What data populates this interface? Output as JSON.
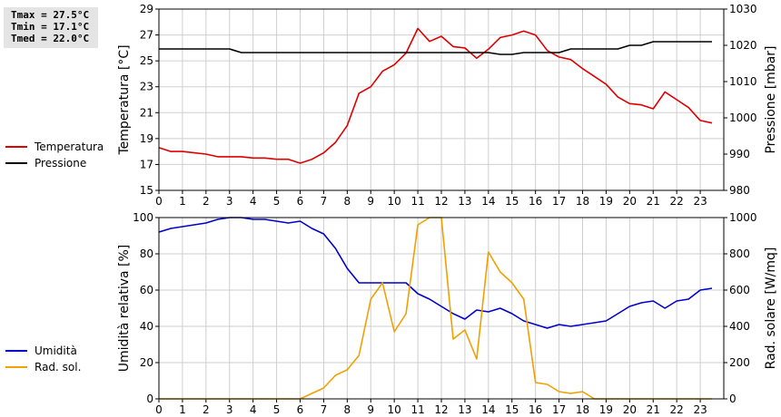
{
  "stats": {
    "tmax": "Tmax = 27.5°C",
    "tmin": "Tmin = 17.1°C",
    "tmed": "Tmed = 22.0°C"
  },
  "chart_data": [
    {
      "type": "line",
      "x_ticks": [
        "0",
        "1",
        "2",
        "3",
        "4",
        "5",
        "6",
        "7",
        "8",
        "9",
        "10",
        "11",
        "12",
        "13",
        "14",
        "15",
        "16",
        "17",
        "18",
        "19",
        "20",
        "21",
        "22",
        "23"
      ],
      "xlim": [
        0,
        24
      ],
      "ylabel": "Temperatura [°C]",
      "ylim": [
        15,
        29
      ],
      "y_ticks": [
        "15",
        "17",
        "19",
        "21",
        "23",
        "25",
        "27",
        "29"
      ],
      "y2label": "Pressione [mbar]",
      "y2lim": [
        980,
        1030
      ],
      "y2_ticks": [
        "980",
        "990",
        "1000",
        "1010",
        "1020",
        "1030"
      ],
      "grid": true,
      "legend_position": "left",
      "series": [
        {
          "name": "Temperatura",
          "axis": "left",
          "color": "#dd0000",
          "x": [
            0,
            0.5,
            1,
            1.5,
            2,
            2.5,
            3,
            3.5,
            4,
            4.5,
            5,
            5.5,
            6,
            6.5,
            7,
            7.5,
            8,
            8.5,
            9,
            9.5,
            10,
            10.5,
            11,
            11.5,
            12,
            12.5,
            13,
            13.5,
            14,
            14.5,
            15,
            15.5,
            16,
            16.5,
            17,
            17.5,
            18,
            18.5,
            19,
            19.5,
            20,
            20.5,
            21,
            21.5,
            22,
            22.5,
            23,
            23.5
          ],
          "values": [
            18.3,
            18.0,
            18.0,
            17.9,
            17.8,
            17.6,
            17.6,
            17.6,
            17.5,
            17.5,
            17.4,
            17.4,
            17.1,
            17.4,
            17.9,
            18.7,
            20.0,
            22.5,
            23.0,
            24.2,
            24.7,
            25.6,
            27.5,
            26.5,
            26.9,
            26.1,
            26.0,
            25.2,
            25.9,
            26.8,
            27.0,
            27.3,
            27.0,
            25.8,
            25.3,
            25.1,
            24.4,
            23.8,
            23.2,
            22.2,
            21.7,
            21.6,
            21.3,
            22.6,
            22.0,
            21.4,
            20.4,
            20.2
          ]
        },
        {
          "name": "Pressione",
          "axis": "right",
          "color": "#000000",
          "x": [
            0,
            3,
            3.5,
            14,
            14.5,
            15,
            15.5,
            17,
            17.5,
            19.5,
            20,
            20.5,
            21,
            23.5
          ],
          "values": [
            1019,
            1019,
            1018,
            1018,
            1017.5,
            1017.5,
            1018,
            1018,
            1019,
            1019,
            1020,
            1020,
            1021,
            1021
          ]
        }
      ]
    },
    {
      "type": "line",
      "x_ticks": [
        "0",
        "1",
        "2",
        "3",
        "4",
        "5",
        "6",
        "7",
        "8",
        "9",
        "10",
        "11",
        "12",
        "13",
        "14",
        "15",
        "16",
        "17",
        "18",
        "19",
        "20",
        "21",
        "22",
        "23"
      ],
      "xlim": [
        0,
        24
      ],
      "ylabel": "Umidità relativa [%]",
      "ylim": [
        0,
        100
      ],
      "y_ticks": [
        "0",
        "20",
        "40",
        "60",
        "80",
        "100"
      ],
      "y2label": "Rad. solare [W/mq]",
      "y2lim": [
        0,
        1000
      ],
      "y2_ticks": [
        "0",
        "200",
        "400",
        "600",
        "800",
        "1000"
      ],
      "grid": true,
      "legend_position": "left",
      "series": [
        {
          "name": "Umidità",
          "axis": "left",
          "color": "#0000cc",
          "x": [
            0,
            0.5,
            1,
            1.5,
            2,
            2.5,
            3,
            3.5,
            4,
            4.5,
            5,
            5.5,
            6,
            6.5,
            7,
            7.5,
            8,
            8.5,
            9,
            9.5,
            10,
            10.5,
            11,
            11.5,
            12,
            12.5,
            13,
            13.5,
            14,
            14.5,
            15,
            15.5,
            16,
            16.5,
            17,
            17.5,
            18,
            18.5,
            19,
            19.5,
            20,
            20.5,
            21,
            21.5,
            22,
            22.5,
            23,
            23.5
          ],
          "values": [
            92,
            94,
            95,
            96,
            97,
            99,
            100,
            100,
            99,
            99,
            98,
            97,
            98,
            94,
            91,
            83,
            72,
            64,
            64,
            64,
            64,
            64,
            58,
            55,
            51,
            47,
            44,
            49,
            48,
            50,
            47,
            43,
            41,
            39,
            41,
            40,
            41,
            42,
            43,
            47,
            51,
            53,
            54,
            50,
            54,
            55,
            60,
            61
          ]
        },
        {
          "name": "Rad. sol.",
          "axis": "right",
          "color": "#f0a000",
          "x": [
            0,
            1,
            2,
            3,
            4,
            5,
            6,
            6.5,
            7,
            7.5,
            8,
            8.5,
            9,
            9.5,
            10,
            10.5,
            11,
            11.5,
            12,
            12.5,
            13,
            13.5,
            14,
            14.5,
            15,
            15.5,
            16,
            16.5,
            17,
            17.5,
            18,
            18.5,
            19,
            20,
            21,
            22,
            23,
            23.5
          ],
          "values": [
            0,
            0,
            0,
            0,
            0,
            0,
            0,
            30,
            60,
            130,
            160,
            240,
            550,
            640,
            370,
            470,
            960,
            1000,
            1000,
            330,
            380,
            220,
            810,
            700,
            640,
            550,
            90,
            80,
            40,
            30,
            40,
            0,
            0,
            0,
            0,
            0,
            0,
            0
          ]
        }
      ]
    }
  ]
}
